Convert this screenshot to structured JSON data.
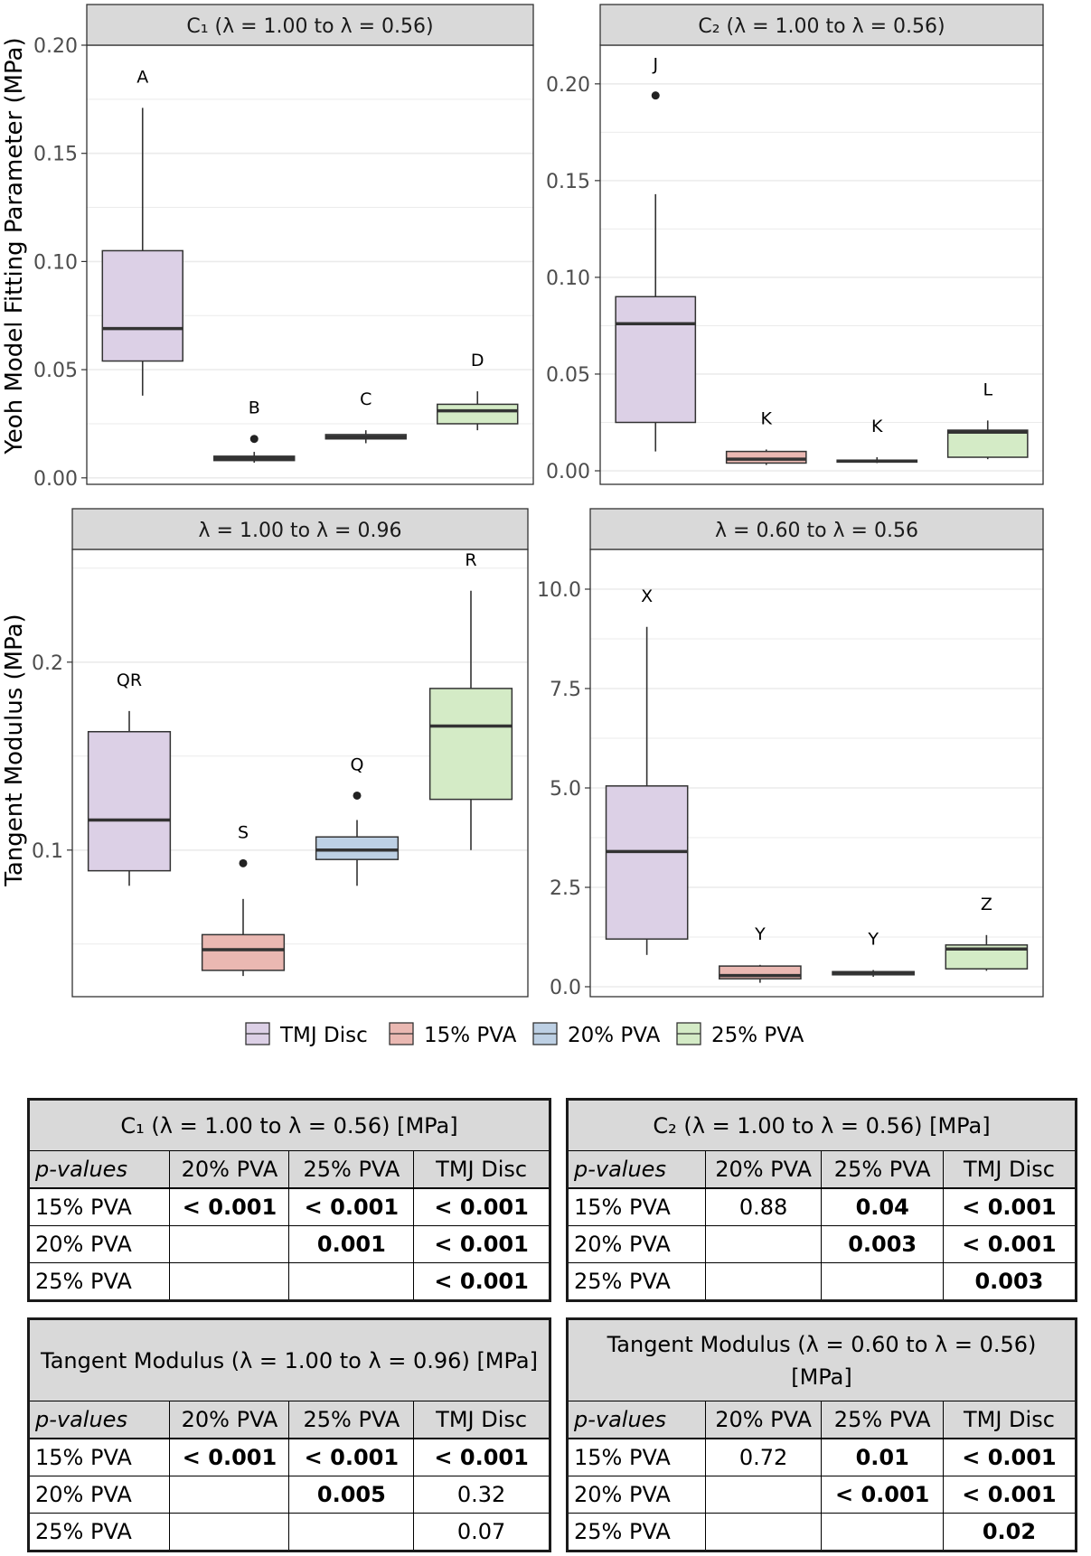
{
  "colors": {
    "tmj": "#dcd0e6",
    "pva15": "#eab8b2",
    "pva20": "#bdd0e4",
    "pva25": "#d4ebc6",
    "strip": "#d9d9d9",
    "median": "#333333",
    "whisker": "#333333",
    "grid": "#ebebeb"
  },
  "axis_titles": {
    "yeoh": "Yeoh Model Fitting Parameter (MPa)",
    "tangent": "Tangent Modulus (MPa)"
  },
  "legend": [
    {
      "label": "TMJ Disc",
      "color_key": "tmj"
    },
    {
      "label": "15% PVA",
      "color_key": "pva15"
    },
    {
      "label": "20% PVA",
      "color_key": "pva20"
    },
    {
      "label": "25% PVA",
      "color_key": "pva25"
    }
  ],
  "chart_data": [
    {
      "id": "c1",
      "type": "box",
      "title": "C₁ (λ = 1.00 to λ = 0.56)",
      "ylabel": "Yeoh Model Fitting Parameter (MPa)",
      "ylim": [
        -0.003,
        0.2
      ],
      "yticks": [
        0.0,
        0.05,
        0.1,
        0.15,
        0.2
      ],
      "ytick_labels": [
        "0.00",
        "0.05",
        "0.10",
        "0.15",
        "0.20"
      ],
      "groups": [
        "TMJ Disc",
        "15% PVA",
        "20% PVA",
        "25% PVA"
      ],
      "boxes": [
        {
          "group": "TMJ Disc",
          "min": 0.038,
          "q1": 0.054,
          "median": 0.069,
          "q3": 0.105,
          "max": 0.171,
          "outliers": [],
          "letter": "A"
        },
        {
          "group": "15% PVA",
          "min": 0.007,
          "q1": 0.008,
          "median": 0.009,
          "q3": 0.01,
          "max": 0.012,
          "outliers": [
            0.018
          ],
          "letter": "B"
        },
        {
          "group": "20% PVA",
          "min": 0.016,
          "q1": 0.018,
          "median": 0.019,
          "q3": 0.02,
          "max": 0.022,
          "outliers": [],
          "letter": "C"
        },
        {
          "group": "25% PVA",
          "min": 0.022,
          "q1": 0.025,
          "median": 0.031,
          "q3": 0.034,
          "max": 0.04,
          "outliers": [],
          "letter": "D"
        }
      ]
    },
    {
      "id": "c2",
      "type": "box",
      "title": "C₂ (λ = 1.00 to λ = 0.56)",
      "ylabel": "",
      "ylim": [
        -0.007,
        0.22
      ],
      "yticks": [
        0.0,
        0.05,
        0.1,
        0.15,
        0.2
      ],
      "ytick_labels": [
        "0.00",
        "0.05",
        "0.10",
        "0.15",
        "0.20"
      ],
      "groups": [
        "TMJ Disc",
        "15% PVA",
        "20% PVA",
        "25% PVA"
      ],
      "boxes": [
        {
          "group": "TMJ Disc",
          "min": 0.01,
          "q1": 0.025,
          "median": 0.076,
          "q3": 0.09,
          "max": 0.143,
          "outliers": [
            0.194
          ],
          "letter": "J"
        },
        {
          "group": "15% PVA",
          "min": 0.003,
          "q1": 0.004,
          "median": 0.006,
          "q3": 0.01,
          "max": 0.011,
          "outliers": [],
          "letter": "K"
        },
        {
          "group": "20% PVA",
          "min": 0.004,
          "q1": 0.0045,
          "median": 0.005,
          "q3": 0.0055,
          "max": 0.007,
          "outliers": [],
          "letter": "K"
        },
        {
          "group": "25% PVA",
          "min": 0.006,
          "q1": 0.007,
          "median": 0.02,
          "q3": 0.021,
          "max": 0.026,
          "outliers": [],
          "letter": "L"
        }
      ]
    },
    {
      "id": "tm1",
      "type": "box",
      "title": "λ = 1.00 to λ = 0.96",
      "ylabel": "Tangent Modulus (MPa)",
      "ylim": [
        0.022,
        0.26
      ],
      "yticks": [
        0.1,
        0.2
      ],
      "ytick_labels": [
        "0.1",
        "0.2"
      ],
      "groups": [
        "TMJ Disc",
        "15% PVA",
        "20% PVA",
        "25% PVA"
      ],
      "boxes": [
        {
          "group": "TMJ Disc",
          "min": 0.081,
          "q1": 0.089,
          "median": 0.116,
          "q3": 0.163,
          "max": 0.174,
          "outliers": [],
          "letter": "QR"
        },
        {
          "group": "15% PVA",
          "min": 0.033,
          "q1": 0.036,
          "median": 0.047,
          "q3": 0.055,
          "max": 0.074,
          "outliers": [
            0.093
          ],
          "letter": "S"
        },
        {
          "group": "20% PVA",
          "min": 0.081,
          "q1": 0.095,
          "median": 0.1,
          "q3": 0.107,
          "max": 0.116,
          "outliers": [
            0.129
          ],
          "letter": "Q"
        },
        {
          "group": "25% PVA",
          "min": 0.1,
          "q1": 0.127,
          "median": 0.166,
          "q3": 0.186,
          "max": 0.238,
          "outliers": [],
          "letter": "R"
        }
      ]
    },
    {
      "id": "tm2",
      "type": "box",
      "title": "λ = 0.60 to λ = 0.56",
      "ylabel": "",
      "ylim": [
        -0.25,
        11.0
      ],
      "yticks": [
        0.0,
        2.5,
        5.0,
        7.5,
        10.0
      ],
      "ytick_labels": [
        "0.0",
        "2.5",
        "5.0",
        "7.5",
        "10.0"
      ],
      "groups": [
        "TMJ Disc",
        "15% PVA",
        "20% PVA",
        "25% PVA"
      ],
      "boxes": [
        {
          "group": "TMJ Disc",
          "min": 0.8,
          "q1": 1.2,
          "median": 3.4,
          "q3": 5.05,
          "max": 9.05,
          "outliers": [],
          "letter": "X"
        },
        {
          "group": "15% PVA",
          "min": 0.1,
          "q1": 0.2,
          "median": 0.28,
          "q3": 0.52,
          "max": 0.55,
          "outliers": [],
          "letter": "Y"
        },
        {
          "group": "20% PVA",
          "min": 0.25,
          "q1": 0.3,
          "median": 0.35,
          "q3": 0.38,
          "max": 0.42,
          "outliers": [],
          "letter": "Y"
        },
        {
          "group": "25% PVA",
          "min": 0.4,
          "q1": 0.45,
          "median": 0.95,
          "q3": 1.05,
          "max": 1.3,
          "outliers": [],
          "letter": "Z"
        }
      ]
    }
  ],
  "tables": [
    {
      "title": "C₁ (λ = 1.00 to λ = 0.56) [MPa]",
      "header": [
        "p-values",
        "20% PVA",
        "25% PVA",
        "TMJ Disc"
      ],
      "rows": [
        {
          "label": "15% PVA",
          "cells": [
            {
              "v": "< 0.001",
              "bold": true
            },
            {
              "v": "< 0.001",
              "bold": true
            },
            {
              "v": "< 0.001",
              "bold": true
            }
          ]
        },
        {
          "label": "20% PVA",
          "cells": [
            {
              "v": "",
              "bold": false
            },
            {
              "v": "0.001",
              "bold": true
            },
            {
              "v": "< 0.001",
              "bold": true
            }
          ]
        },
        {
          "label": "25% PVA",
          "cells": [
            {
              "v": "",
              "bold": false
            },
            {
              "v": "",
              "bold": false
            },
            {
              "v": "< 0.001",
              "bold": true
            }
          ]
        }
      ]
    },
    {
      "title": "C₂ (λ = 1.00 to λ = 0.56) [MPa]",
      "header": [
        "p-values",
        "20% PVA",
        "25% PVA",
        "TMJ Disc"
      ],
      "rows": [
        {
          "label": "15% PVA",
          "cells": [
            {
              "v": "0.88",
              "bold": false
            },
            {
              "v": "0.04",
              "bold": true
            },
            {
              "v": "< 0.001",
              "bold": true
            }
          ]
        },
        {
          "label": "20% PVA",
          "cells": [
            {
              "v": "",
              "bold": false
            },
            {
              "v": "0.003",
              "bold": true
            },
            {
              "v": "< 0.001",
              "bold": true
            }
          ]
        },
        {
          "label": "25% PVA",
          "cells": [
            {
              "v": "",
              "bold": false
            },
            {
              "v": "",
              "bold": false
            },
            {
              "v": "0.003",
              "bold": true
            }
          ]
        }
      ]
    },
    {
      "title": "Tangent Modulus (λ = 1.00 to λ = 0.96) [MPa]",
      "header": [
        "p-values",
        "20% PVA",
        "25% PVA",
        "TMJ Disc"
      ],
      "rows": [
        {
          "label": "15% PVA",
          "cells": [
            {
              "v": "< 0.001",
              "bold": true
            },
            {
              "v": "< 0.001",
              "bold": true
            },
            {
              "v": "< 0.001",
              "bold": true
            }
          ]
        },
        {
          "label": "20% PVA",
          "cells": [
            {
              "v": "",
              "bold": false
            },
            {
              "v": "0.005",
              "bold": true
            },
            {
              "v": "0.32",
              "bold": false
            }
          ]
        },
        {
          "label": "25% PVA",
          "cells": [
            {
              "v": "",
              "bold": false
            },
            {
              "v": "",
              "bold": false
            },
            {
              "v": "0.07",
              "bold": false
            }
          ]
        }
      ]
    },
    {
      "title": "Tangent Modulus (λ = 0.60 to λ = 0.56) [MPa]",
      "header": [
        "p-values",
        "20% PVA",
        "25% PVA",
        "TMJ Disc"
      ],
      "rows": [
        {
          "label": "15% PVA",
          "cells": [
            {
              "v": "0.72",
              "bold": false
            },
            {
              "v": "0.01",
              "bold": true
            },
            {
              "v": "< 0.001",
              "bold": true
            }
          ]
        },
        {
          "label": "20% PVA",
          "cells": [
            {
              "v": "",
              "bold": false
            },
            {
              "v": "< 0.001",
              "bold": true
            },
            {
              "v": "< 0.001",
              "bold": true
            }
          ]
        },
        {
          "label": "25% PVA",
          "cells": [
            {
              "v": "",
              "bold": false
            },
            {
              "v": "",
              "bold": false
            },
            {
              "v": "0.02",
              "bold": true
            }
          ]
        }
      ]
    }
  ]
}
